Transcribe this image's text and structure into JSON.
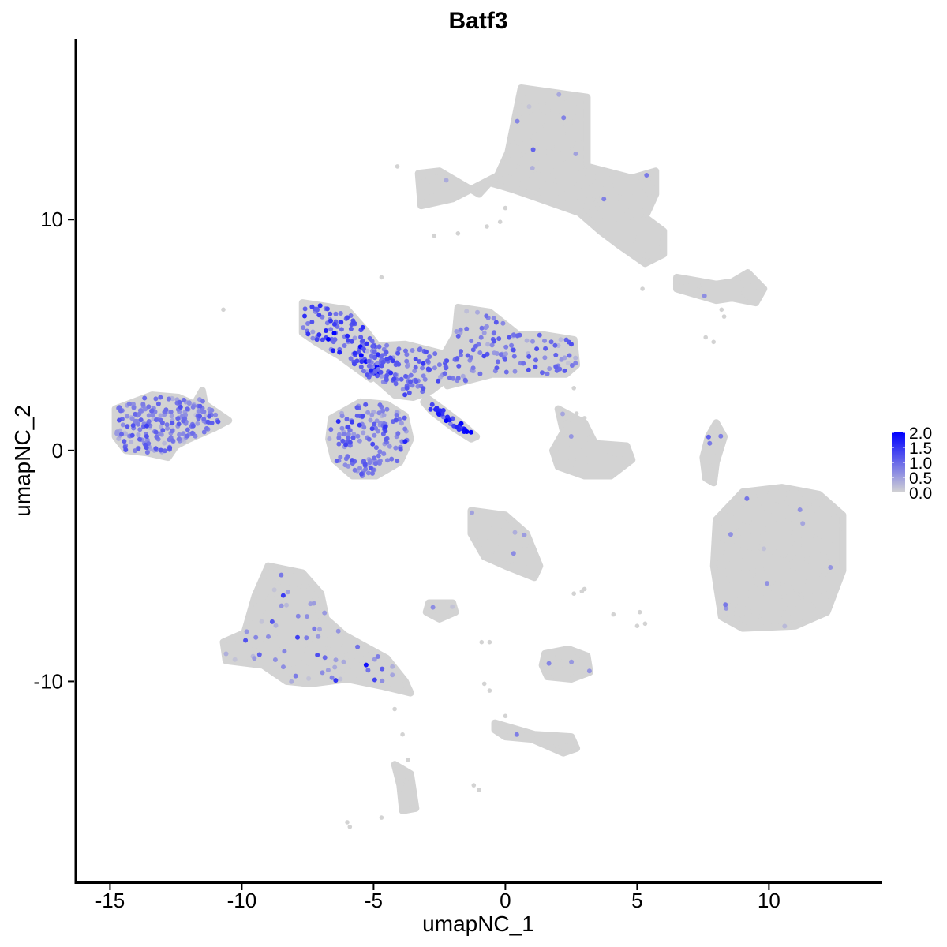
{
  "chart_data": {
    "type": "scatter",
    "title": "Batf3",
    "xlabel": "umapNC_1",
    "ylabel": "umapNC_2",
    "xlim": [
      -16.3,
      14.3
    ],
    "ylim": [
      -18.7,
      17.8
    ],
    "x_ticks": [
      -15,
      -10,
      -5,
      0,
      5,
      10
    ],
    "x_tick_labels": [
      "-15",
      "-10",
      "-5",
      "0",
      "5",
      "10"
    ],
    "y_ticks": [
      -10,
      0,
      10
    ],
    "y_tick_labels": [
      "-10",
      "0",
      "10"
    ],
    "grid": false,
    "legend": {
      "placement": "right",
      "type": "continuous",
      "values": [
        0.0,
        0.5,
        1.0,
        1.5,
        2.0
      ],
      "labels": [
        "0.0",
        "0.5",
        "1.0",
        "1.5",
        "2.0"
      ],
      "color_low": "#d3d3d3",
      "color_high": "#0000ff"
    },
    "point_color_low": "#d3d3d3",
    "point_color_high": "#0000ff",
    "clusters": [
      {
        "id": "top-right",
        "hull": [
          [
            0.6,
            15.7
          ],
          [
            3.1,
            15.3
          ],
          [
            3.1,
            12.3
          ],
          [
            4.8,
            11.8
          ],
          [
            5.7,
            12.1
          ],
          [
            5.7,
            11.1
          ],
          [
            5.3,
            10.1
          ],
          [
            6.0,
            9.5
          ],
          [
            6.0,
            8.5
          ],
          [
            5.3,
            8.1
          ],
          [
            4.3,
            8.9
          ],
          [
            3.6,
            9.5
          ],
          [
            2.8,
            10.3
          ],
          [
            0.3,
            11.3
          ],
          [
            -0.6,
            11.6
          ],
          [
            -1.0,
            11.1
          ],
          [
            -2.5,
            12.1
          ],
          [
            -3.3,
            12.0
          ],
          [
            -3.2,
            10.6
          ],
          [
            -2.0,
            10.9
          ],
          [
            -0.3,
            11.9
          ],
          [
            0.1,
            12.9
          ]
        ],
        "n": 340,
        "expr_rate": 0.03,
        "expr_mean": 0.5,
        "expr_sd": 0.4
      },
      {
        "id": "right-small",
        "hull": [
          [
            6.5,
            7.5
          ],
          [
            8.0,
            7.2
          ],
          [
            8.6,
            7.3
          ],
          [
            9.2,
            7.7
          ],
          [
            9.8,
            7.0
          ],
          [
            9.5,
            6.4
          ],
          [
            8.6,
            6.6
          ],
          [
            8.0,
            6.5
          ],
          [
            6.5,
            7.0
          ]
        ],
        "n": 40,
        "expr_rate": 0.05,
        "expr_mean": 0.5,
        "expr_sd": 0.3
      },
      {
        "id": "far-right",
        "hull": [
          [
            8.0,
            -3.0
          ],
          [
            9.0,
            -1.8
          ],
          [
            10.5,
            -1.6
          ],
          [
            11.9,
            -1.9
          ],
          [
            12.8,
            -2.8
          ],
          [
            12.8,
            -5.2
          ],
          [
            12.2,
            -7.0
          ],
          [
            11.0,
            -7.6
          ],
          [
            9.0,
            -7.7
          ],
          [
            8.2,
            -7.2
          ],
          [
            7.9,
            -5.0
          ]
        ],
        "n": 420,
        "expr_rate": 0.02,
        "expr_mean": 0.5,
        "expr_sd": 0.4
      },
      {
        "id": "left-blob",
        "hull": [
          [
            -14.8,
            1.8
          ],
          [
            -13.4,
            2.4
          ],
          [
            -12.4,
            2.3
          ],
          [
            -11.8,
            2.0
          ],
          [
            -11.5,
            2.6
          ],
          [
            -11.4,
            2.0
          ],
          [
            -10.5,
            1.3
          ],
          [
            -11.0,
            1.0
          ],
          [
            -12.0,
            0.5
          ],
          [
            -12.5,
            0.2
          ],
          [
            -12.8,
            -0.3
          ],
          [
            -13.6,
            -0.1
          ],
          [
            -14.4,
            0.0
          ],
          [
            -14.8,
            0.6
          ]
        ],
        "n": 220,
        "expr_rate": 0.97,
        "expr_mean": 0.75,
        "expr_sd": 0.3
      },
      {
        "id": "center-upper-left",
        "hull": [
          [
            -7.7,
            6.4
          ],
          [
            -6.0,
            6.1
          ],
          [
            -5.3,
            5.2
          ],
          [
            -4.7,
            4.3
          ],
          [
            -4.6,
            3.5
          ],
          [
            -5.1,
            3.1
          ],
          [
            -6.3,
            4.1
          ],
          [
            -7.2,
            4.7
          ],
          [
            -7.7,
            5.1
          ]
        ],
        "n": 120,
        "expr_rate": 0.98,
        "expr_mean": 1.1,
        "expr_sd": 0.35
      },
      {
        "id": "center-hub",
        "hull": [
          [
            -5.5,
            4.5
          ],
          [
            -3.8,
            4.6
          ],
          [
            -2.4,
            4.2
          ],
          [
            -2.0,
            3.3
          ],
          [
            -2.8,
            2.6
          ],
          [
            -3.5,
            2.3
          ],
          [
            -4.2,
            2.4
          ],
          [
            -5.0,
            3.2
          ]
        ],
        "n": 110,
        "expr_rate": 0.96,
        "expr_mean": 0.95,
        "expr_sd": 0.3
      },
      {
        "id": "center-upper-right",
        "hull": [
          [
            -1.8,
            6.2
          ],
          [
            -0.6,
            6.0
          ],
          [
            0.5,
            5.0
          ],
          [
            1.5,
            5.0
          ],
          [
            2.6,
            4.8
          ],
          [
            2.7,
            3.7
          ],
          [
            2.3,
            3.3
          ],
          [
            1.0,
            3.3
          ],
          [
            -0.5,
            3.3
          ],
          [
            -2.2,
            2.8
          ],
          [
            -2.6,
            3.6
          ],
          [
            -1.9,
            5.0
          ]
        ],
        "n": 150,
        "expr_rate": 0.8,
        "expr_mean": 0.8,
        "expr_sd": 0.3
      },
      {
        "id": "center-lower",
        "hull": [
          [
            -6.6,
            1.4
          ],
          [
            -5.5,
            2.1
          ],
          [
            -4.5,
            2.0
          ],
          [
            -3.8,
            1.5
          ],
          [
            -3.6,
            0.5
          ],
          [
            -4.0,
            -0.5
          ],
          [
            -4.9,
            -1.1
          ],
          [
            -5.8,
            -1.1
          ],
          [
            -6.5,
            -0.4
          ],
          [
            -6.7,
            0.5
          ]
        ],
        "n": 160,
        "expr_rate": 0.97,
        "expr_mean": 0.85,
        "expr_sd": 0.3
      },
      {
        "id": "center-streak",
        "hull": [
          [
            -3.0,
            2.3
          ],
          [
            -2.4,
            1.8
          ],
          [
            -1.6,
            1.1
          ],
          [
            -1.1,
            0.6
          ],
          [
            -1.3,
            0.5
          ],
          [
            -2.0,
            1.0
          ],
          [
            -2.8,
            1.7
          ],
          [
            -3.1,
            2.1
          ]
        ],
        "n": 30,
        "expr_rate": 1.0,
        "expr_mean": 1.5,
        "expr_sd": 0.3
      },
      {
        "id": "center-right-small",
        "hull": [
          [
            2.0,
            1.8
          ],
          [
            3.0,
            1.2
          ],
          [
            3.4,
            0.3
          ],
          [
            4.6,
            0.2
          ],
          [
            4.8,
            -0.4
          ],
          [
            4.0,
            -1.1
          ],
          [
            3.0,
            -1.1
          ],
          [
            2.0,
            -0.7
          ],
          [
            1.8,
            0.0
          ],
          [
            2.2,
            0.8
          ]
        ],
        "n": 60,
        "expr_rate": 0.06,
        "expr_mean": 0.5,
        "expr_sd": 0.3
      },
      {
        "id": "right-thin",
        "hull": [
          [
            8.0,
            1.2
          ],
          [
            8.3,
            0.6
          ],
          [
            8.0,
            -0.5
          ],
          [
            7.9,
            -1.4
          ],
          [
            7.6,
            -1.2
          ],
          [
            7.5,
            -0.3
          ],
          [
            7.7,
            0.6
          ]
        ],
        "n": 20,
        "expr_rate": 0.08,
        "expr_mean": 0.6,
        "expr_sd": 0.3
      },
      {
        "id": "mid-lower-center",
        "hull": [
          [
            -1.3,
            -2.6
          ],
          [
            0.0,
            -2.8
          ],
          [
            0.8,
            -3.6
          ],
          [
            1.3,
            -5.0
          ],
          [
            1.1,
            -5.5
          ],
          [
            0.0,
            -5.0
          ],
          [
            -0.8,
            -4.6
          ],
          [
            -1.3,
            -3.6
          ]
        ],
        "n": 60,
        "expr_rate": 0.04,
        "expr_mean": 0.5,
        "expr_sd": 0.3
      },
      {
        "id": "bottom-left-big",
        "hull": [
          [
            -9.0,
            -5.0
          ],
          [
            -7.7,
            -5.3
          ],
          [
            -7.0,
            -6.2
          ],
          [
            -6.8,
            -7.3
          ],
          [
            -6.1,
            -8.0
          ],
          [
            -4.5,
            -9.0
          ],
          [
            -3.8,
            -10.0
          ],
          [
            -3.6,
            -10.5
          ],
          [
            -4.7,
            -10.2
          ],
          [
            -6.0,
            -9.9
          ],
          [
            -7.4,
            -10.1
          ],
          [
            -8.3,
            -10.0
          ],
          [
            -9.2,
            -9.3
          ],
          [
            -10.6,
            -9.1
          ],
          [
            -10.7,
            -8.3
          ],
          [
            -9.9,
            -7.9
          ],
          [
            -9.5,
            -6.3
          ]
        ],
        "n": 260,
        "expr_rate": 0.25,
        "expr_mean": 0.6,
        "expr_sd": 0.4
      },
      {
        "id": "bottom-left-tail",
        "hull": [
          [
            -4.2,
            -13.6
          ],
          [
            -3.6,
            -14.0
          ],
          [
            -3.4,
            -15.5
          ],
          [
            -3.9,
            -15.6
          ],
          [
            -4.0,
            -14.5
          ]
        ],
        "n": 25,
        "expr_rate": 0.04,
        "expr_mean": 0.5,
        "expr_sd": 0.3
      },
      {
        "id": "lower-small-1",
        "hull": [
          [
            -2.9,
            -6.6
          ],
          [
            -2.0,
            -6.6
          ],
          [
            -1.9,
            -7.0
          ],
          [
            -2.5,
            -7.3
          ],
          [
            -3.0,
            -7.0
          ]
        ],
        "n": 15,
        "expr_rate": 0.05,
        "expr_mean": 0.5,
        "expr_sd": 0.3
      },
      {
        "id": "lower-small-2",
        "hull": [
          [
            1.5,
            -8.8
          ],
          [
            2.4,
            -8.6
          ],
          [
            3.1,
            -8.9
          ],
          [
            3.2,
            -9.6
          ],
          [
            2.5,
            -9.9
          ],
          [
            1.6,
            -9.8
          ],
          [
            1.4,
            -9.3
          ]
        ],
        "n": 35,
        "expr_rate": 0.06,
        "expr_mean": 0.6,
        "expr_sd": 0.3
      },
      {
        "id": "lower-small-3",
        "hull": [
          [
            -0.4,
            -11.8
          ],
          [
            0.2,
            -12.0
          ],
          [
            1.1,
            -12.3
          ],
          [
            2.5,
            -12.4
          ],
          [
            2.7,
            -12.9
          ],
          [
            2.2,
            -13.1
          ],
          [
            1.0,
            -12.5
          ],
          [
            0.0,
            -12.4
          ],
          [
            -0.4,
            -12.1
          ]
        ],
        "n": 30,
        "expr_rate": 0.04,
        "expr_mean": 0.5,
        "expr_sd": 0.3
      }
    ],
    "isolated_points": [
      [
        -10.7,
        6.1
      ],
      [
        -4.7,
        7.5
      ],
      [
        -2.7,
        9.3
      ],
      [
        -3.2,
        11.4
      ],
      [
        -0.7,
        9.7
      ],
      [
        -0.2,
        9.9
      ],
      [
        0.0,
        10.5
      ],
      [
        -1.8,
        9.4
      ],
      [
        5.2,
        7.0
      ],
      [
        9.4,
        7.2
      ],
      [
        9.6,
        6.5
      ],
      [
        7.6,
        4.9
      ],
      [
        7.9,
        4.7
      ],
      [
        8.2,
        6.1
      ],
      [
        8.3,
        5.8
      ],
      [
        2.6,
        2.7
      ],
      [
        2.3,
        1.4
      ],
      [
        2.7,
        1.6
      ],
      [
        3.0,
        1.4
      ],
      [
        -4.1,
        12.3
      ],
      [
        4.1,
        -7.1
      ],
      [
        2.6,
        -6.2
      ],
      [
        2.9,
        -6.1
      ],
      [
        3.0,
        -6.0
      ],
      [
        -0.9,
        -8.3
      ],
      [
        -0.6,
        -8.3
      ],
      [
        5.0,
        -7.6
      ],
      [
        5.3,
        -7.5
      ],
      [
        5.1,
        -7.0
      ],
      [
        -0.8,
        -10.1
      ],
      [
        -0.6,
        -10.4
      ],
      [
        0.0,
        -11.5
      ],
      [
        -4.2,
        -11.2
      ],
      [
        -3.9,
        -12.3
      ],
      [
        -3.7,
        -13.4
      ],
      [
        -1.2,
        -14.5
      ],
      [
        -1.0,
        -14.7
      ],
      [
        -4.7,
        -15.9
      ],
      [
        -6.0,
        -16.1
      ],
      [
        -5.9,
        -16.3
      ]
    ]
  }
}
